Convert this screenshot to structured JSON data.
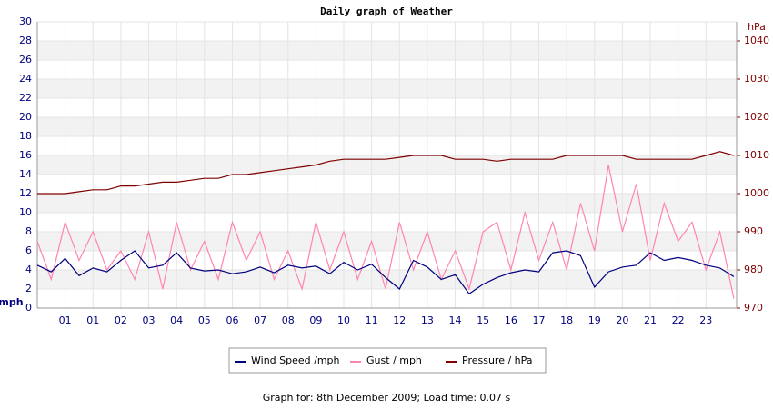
{
  "chart_data": {
    "type": "line",
    "title": "Daily graph of Weather",
    "y_label": "mph",
    "y2_label": "hPa",
    "footer": "Graph for: 8th December 2009; Load time: 0.07 s",
    "x": [
      0,
      0.5,
      1,
      1.5,
      2,
      2.5,
      3,
      3.5,
      4,
      4.5,
      5,
      5.5,
      6,
      6.5,
      7,
      7.5,
      8,
      8.5,
      9,
      9.5,
      10,
      10.5,
      11,
      11.5,
      12,
      12.5,
      13,
      13.5,
      14,
      14.5,
      15,
      15.5,
      16,
      16.5,
      17,
      17.5,
      18,
      18.5,
      19,
      19.5,
      20,
      20.5,
      21,
      21.5,
      22,
      22.5,
      23,
      23.5,
      24,
      24.5,
      25
    ],
    "xlim": [
      0,
      25.1
    ],
    "xticks": [
      {
        "value": 1,
        "label": "01"
      },
      {
        "value": 2,
        "label": "01"
      },
      {
        "value": 3,
        "label": "02"
      },
      {
        "value": 4,
        "label": "03"
      },
      {
        "value": 5,
        "label": "04"
      },
      {
        "value": 6,
        "label": "05"
      },
      {
        "value": 7,
        "label": "06"
      },
      {
        "value": 8,
        "label": "07"
      },
      {
        "value": 9,
        "label": "08"
      },
      {
        "value": 10,
        "label": "09"
      },
      {
        "value": 11,
        "label": "10"
      },
      {
        "value": 12,
        "label": "11"
      },
      {
        "value": 13,
        "label": "12"
      },
      {
        "value": 14,
        "label": "13"
      },
      {
        "value": 15,
        "label": "14"
      },
      {
        "value": 16,
        "label": "15"
      },
      {
        "value": 17,
        "label": "16"
      },
      {
        "value": 18,
        "label": "17"
      },
      {
        "value": 19,
        "label": "18"
      },
      {
        "value": 20,
        "label": "19"
      },
      {
        "value": 21,
        "label": "20"
      },
      {
        "value": 22,
        "label": "21"
      },
      {
        "value": 23,
        "label": "22"
      },
      {
        "value": 24,
        "label": "23"
      }
    ],
    "ylim": [
      0,
      30
    ],
    "yticks": [
      0,
      2,
      4,
      6,
      8,
      10,
      12,
      14,
      16,
      18,
      20,
      22,
      24,
      26,
      28,
      30
    ],
    "y2lim": [
      970,
      1045
    ],
    "y2ticks": [
      970,
      980,
      990,
      1000,
      1010,
      1020,
      1030,
      1040
    ],
    "grid": true,
    "legend": "bottom",
    "series": [
      {
        "name": "Wind Speed /mph",
        "color": "#000080",
        "values": [
          4.5,
          3.8,
          5.2,
          3.4,
          4.2,
          3.8,
          5,
          6,
          4.2,
          4.5,
          5.8,
          4.2,
          3.9,
          4,
          3.6,
          3.8,
          4.3,
          3.7,
          4.5,
          4.2,
          4.4,
          3.6,
          4.8,
          4,
          4.6,
          3.2,
          2,
          5,
          4.3,
          3,
          3.5,
          1.5,
          2.5,
          3.2,
          3.7,
          4,
          3.8,
          5.8,
          6,
          5.5,
          2.2,
          3.8,
          4.3,
          4.5,
          5.8,
          5,
          5.3,
          5,
          4.5,
          4.2,
          3.3
        ]
      },
      {
        "name": "Gust / mph",
        "color": "#ff85b0",
        "values": [
          7,
          3,
          9,
          5,
          8,
          4,
          6,
          3,
          8,
          2,
          9,
          4,
          7,
          3,
          9,
          5,
          8,
          3,
          6,
          2,
          9,
          4,
          8,
          3,
          7,
          2,
          9,
          4,
          8,
          3,
          6,
          2,
          8,
          9,
          4,
          10,
          5,
          9,
          4,
          11,
          6,
          15,
          8,
          13,
          5,
          11,
          7,
          9,
          4,
          8,
          1
        ]
      },
      {
        "name": "Pressure / hPa",
        "color": "#800000",
        "axis": "y2",
        "values": [
          1000,
          1000,
          1000,
          1000.5,
          1001,
          1001,
          1002,
          1002,
          1002.5,
          1003,
          1003,
          1003.5,
          1004,
          1004,
          1005,
          1005,
          1005.5,
          1006,
          1006.5,
          1007,
          1007.5,
          1008.5,
          1009,
          1009,
          1009,
          1009,
          1009.5,
          1010,
          1010,
          1010,
          1009,
          1009,
          1009,
          1008.5,
          1009,
          1009,
          1009,
          1009,
          1010,
          1010,
          1010,
          1010,
          1010,
          1009,
          1009,
          1009,
          1009,
          1009,
          1010,
          1011,
          1010
        ]
      }
    ]
  }
}
